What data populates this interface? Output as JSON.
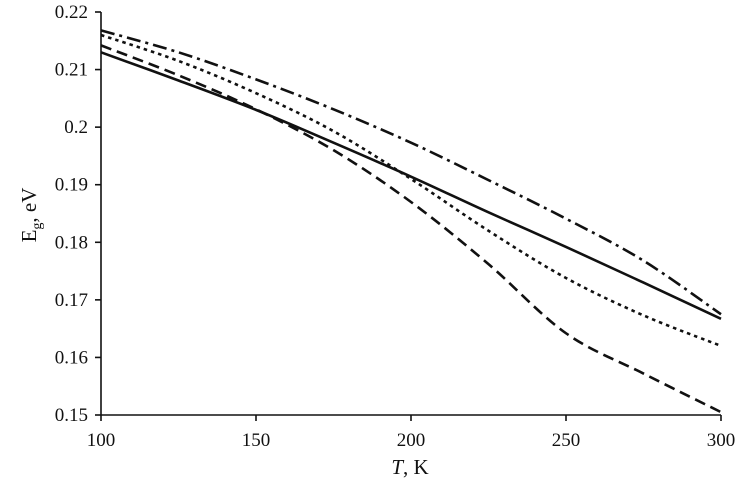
{
  "chart_data": {
    "type": "line",
    "xlabel_italic": "T",
    "xlabel_rest": ", K",
    "ylabel_main": "E",
    "ylabel_sub": "g",
    "ylabel_rest": ", eV",
    "xlim": [
      100,
      300
    ],
    "ylim": [
      0.15,
      0.22
    ],
    "x_ticks": [
      100,
      150,
      200,
      250,
      300
    ],
    "x_tick_labels": [
      "100",
      "150",
      "200",
      "250",
      "300"
    ],
    "y_ticks": [
      0.15,
      0.16,
      0.17,
      0.18,
      0.19,
      0.2,
      0.21,
      0.22
    ],
    "y_tick_labels": [
      "0.15",
      "0.16",
      "0.17",
      "0.18",
      "0.19",
      "0.2",
      "0.21",
      "0.22"
    ],
    "grid": false,
    "legend": "none",
    "x": [
      100,
      125,
      150,
      175,
      200,
      225,
      250,
      275,
      300
    ],
    "series": [
      {
        "style": "solid",
        "values": [
          0.213,
          0.2081,
          0.203,
          0.1973,
          0.1914,
          0.1852,
          0.1792,
          0.173,
          0.1667
        ]
      },
      {
        "style": "dash-dot",
        "values": [
          0.2168,
          0.213,
          0.2083,
          0.2031,
          0.1973,
          0.1908,
          0.1841,
          0.1768,
          0.1675
        ]
      },
      {
        "style": "dotted",
        "values": [
          0.216,
          0.2115,
          0.2059,
          0.1993,
          0.191,
          0.182,
          0.1738,
          0.1673,
          0.162
        ]
      },
      {
        "style": "dashed",
        "values": [
          0.2142,
          0.209,
          0.2031,
          0.196,
          0.187,
          0.1762,
          0.1642,
          0.1572,
          0.1505
        ]
      }
    ]
  }
}
